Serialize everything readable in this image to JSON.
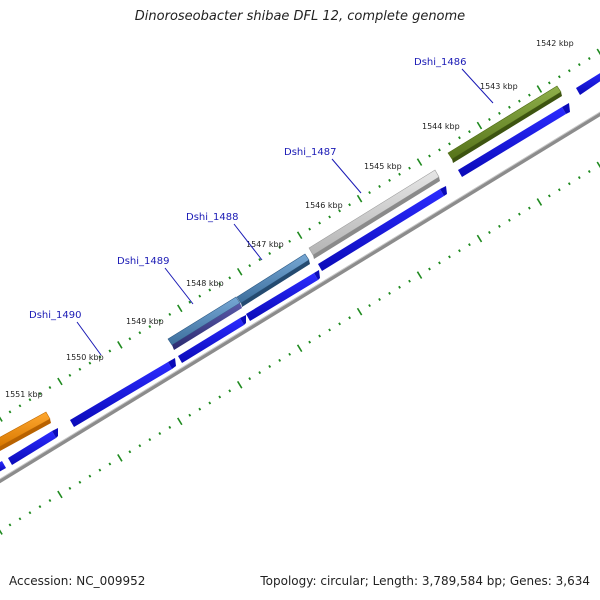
{
  "title": "Dinoroseobacter shibae DFL 12, complete genome",
  "footer": {
    "accession": "Accession: NC_009952",
    "summary": "Topology: circular; Length: 3,789,584 bp; Genes: 3,634"
  },
  "ruler_labels": [
    "1542 kbp",
    "1543 kbp",
    "1544 kbp",
    "1545 kbp",
    "1546 kbp",
    "1547 kbp",
    "1548 kbp",
    "1549 kbp",
    "1550 kbp",
    "1551 kbp"
  ],
  "gene_labels": [
    "Dshi_1486",
    "Dshi_1487",
    "Dshi_1488",
    "Dshi_1489",
    "Dshi_1490"
  ],
  "colors": {
    "backbone": "#8c8c8c",
    "ticks": "#1f8a1f",
    "cds_blue": "#1010e0",
    "gene_olive": "#6b8e23",
    "gene_gray": "#c8c8c8",
    "gene_steelblue": "#4f86b8",
    "gene_darkslate": "#3c3c8c",
    "gene_orange": "#f08c00"
  }
}
